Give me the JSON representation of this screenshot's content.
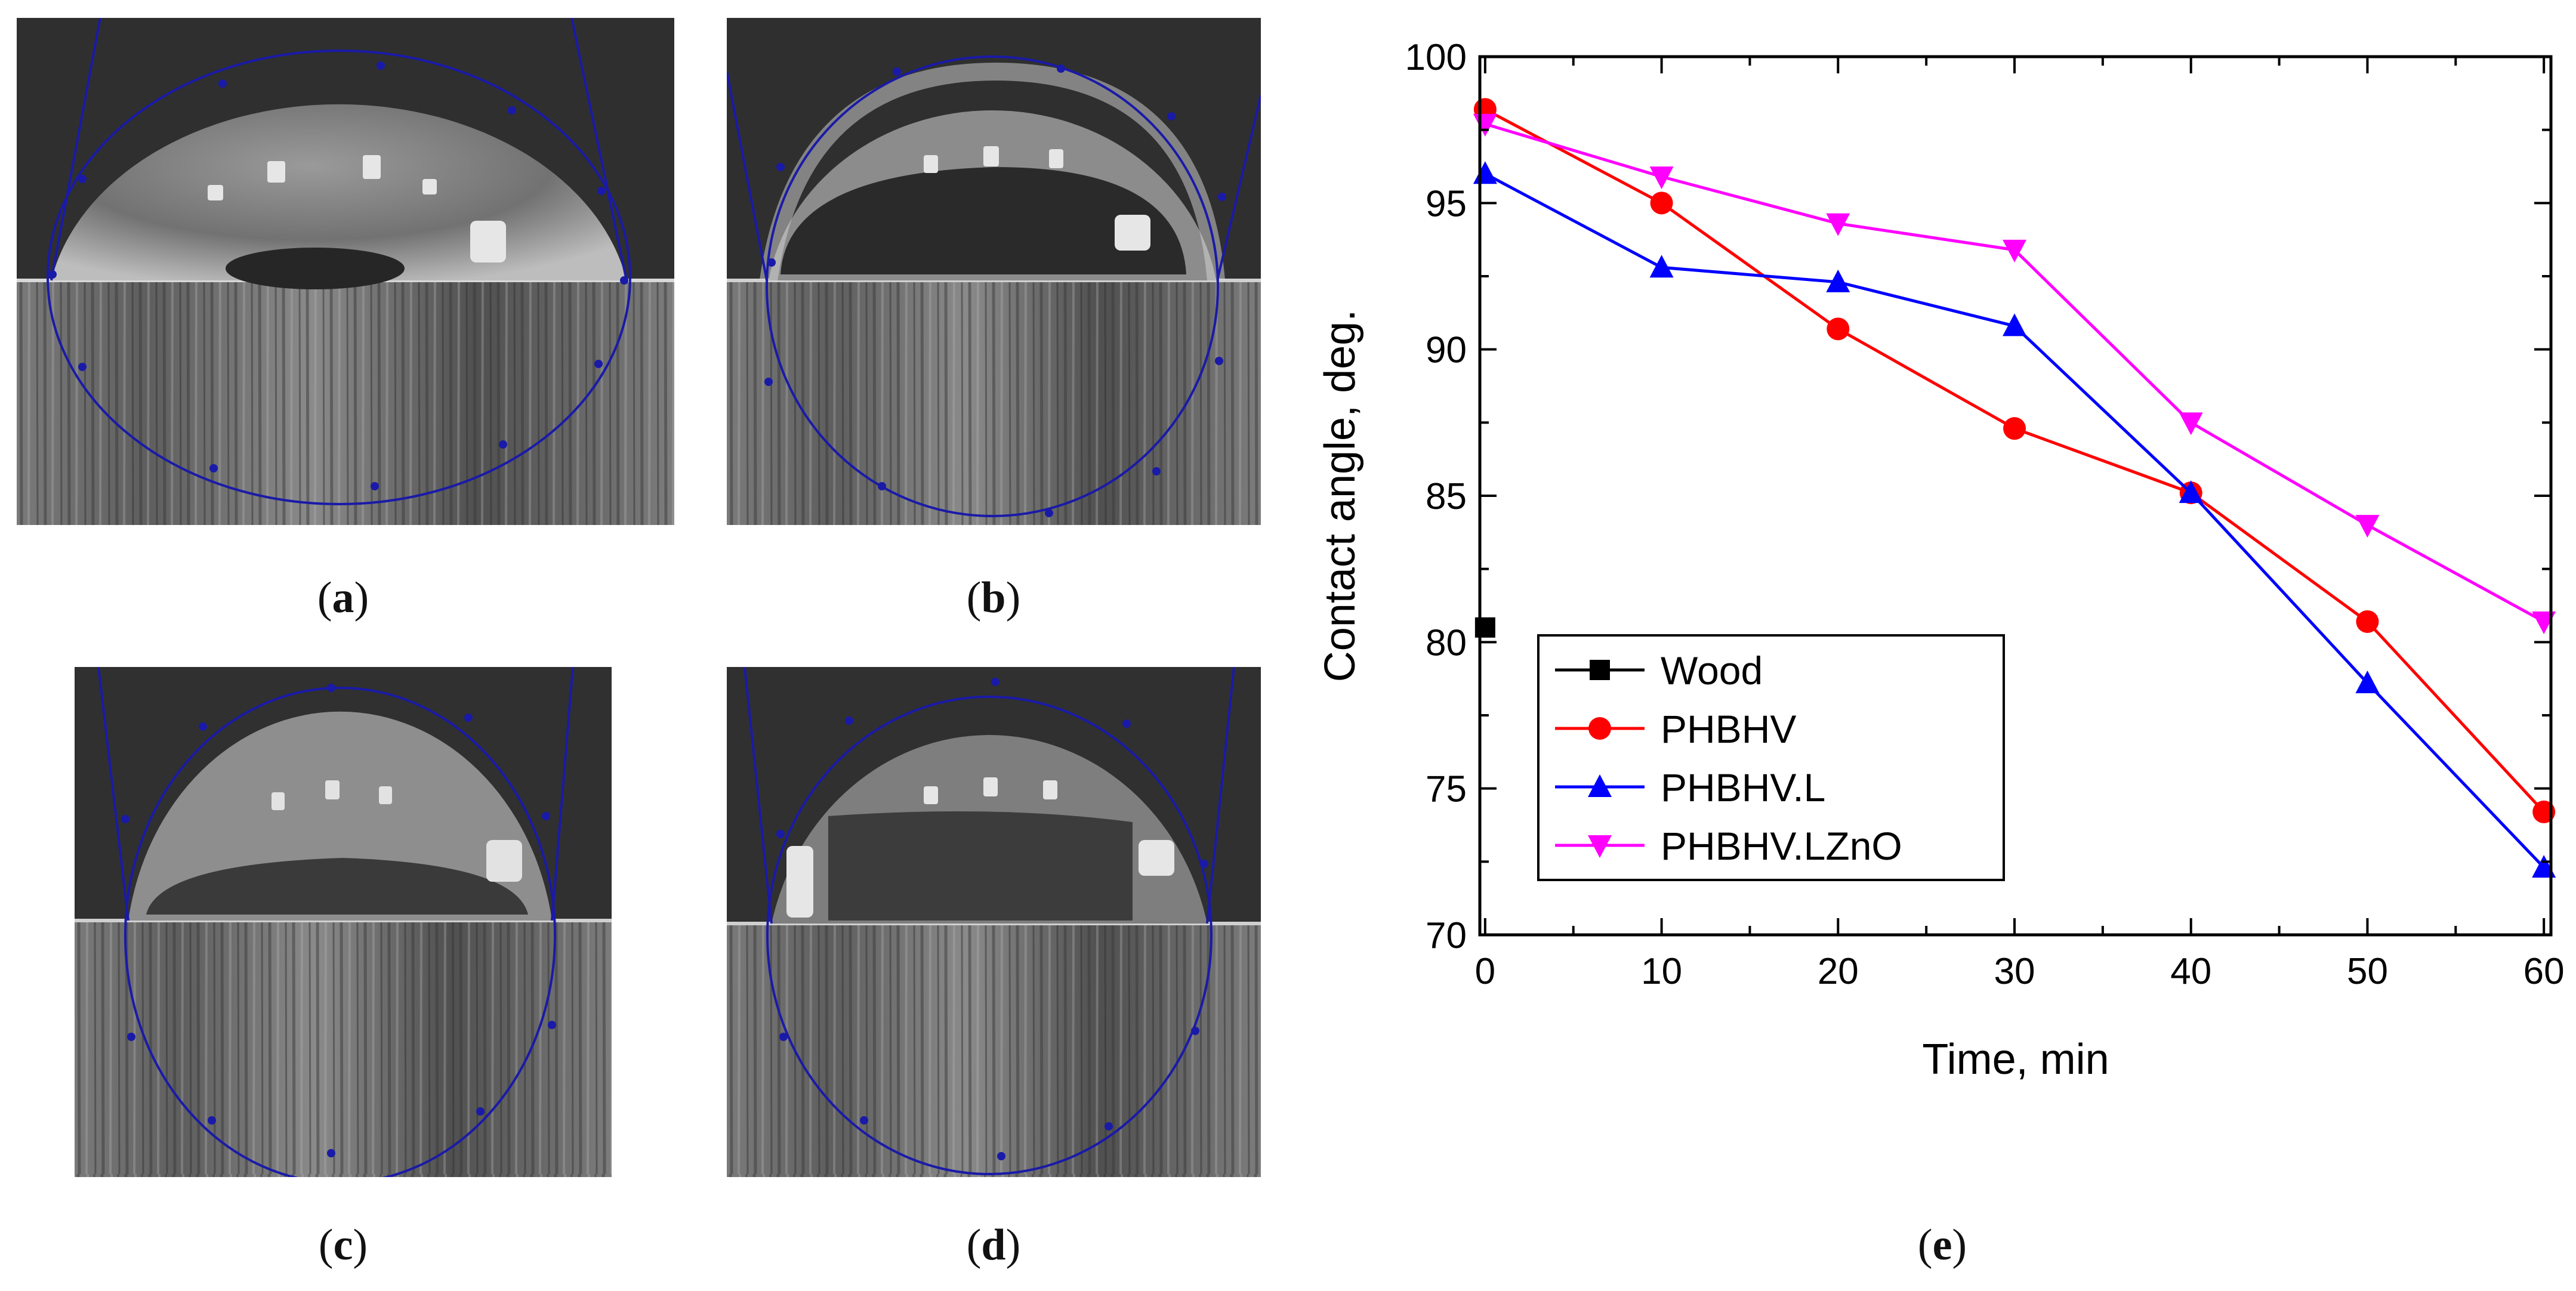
{
  "figure": {
    "panels": [
      {
        "label_open": "(",
        "letter": "a",
        "label_close": ")"
      },
      {
        "label_open": "(",
        "letter": "b",
        "label_close": ")"
      },
      {
        "label_open": "(",
        "letter": "c",
        "label_close": ")"
      },
      {
        "label_open": "(",
        "letter": "d",
        "label_close": ")"
      },
      {
        "label_open": "(",
        "letter": "e",
        "label_close": ")"
      }
    ]
  },
  "chart_data": {
    "type": "line",
    "title": "",
    "xlabel": "Time, min",
    "ylabel": "Contact angle, deg.",
    "xlim": [
      0,
      60
    ],
    "ylim": [
      70,
      100
    ],
    "xticks": [
      0,
      10,
      20,
      30,
      40,
      50,
      60
    ],
    "yticks": [
      70,
      75,
      80,
      85,
      90,
      95,
      100
    ],
    "legend_position": "bottom-left",
    "series": [
      {
        "name": "Wood",
        "color": "#000000",
        "marker": "square",
        "x": [
          0
        ],
        "y": [
          80.5
        ]
      },
      {
        "name": "PHBHV",
        "color": "#ff0000",
        "marker": "circle",
        "x": [
          0,
          10,
          20,
          30,
          40,
          50,
          60
        ],
        "y": [
          98.2,
          95.0,
          90.7,
          87.3,
          85.1,
          80.7,
          74.2
        ]
      },
      {
        "name": "PHBHV.L",
        "color": "#0000ff",
        "marker": "triangle-up",
        "x": [
          0,
          10,
          20,
          30,
          40,
          50,
          60
        ],
        "y": [
          96.0,
          92.8,
          92.3,
          90.8,
          85.1,
          78.6,
          72.3
        ]
      },
      {
        "name": "PHBHV.LZnO",
        "color": "#ff00ff",
        "marker": "triangle-down",
        "x": [
          0,
          10,
          20,
          30,
          40,
          50,
          60
        ],
        "y": [
          97.7,
          95.9,
          94.3,
          93.4,
          87.5,
          84.0,
          80.7
        ]
      }
    ]
  }
}
